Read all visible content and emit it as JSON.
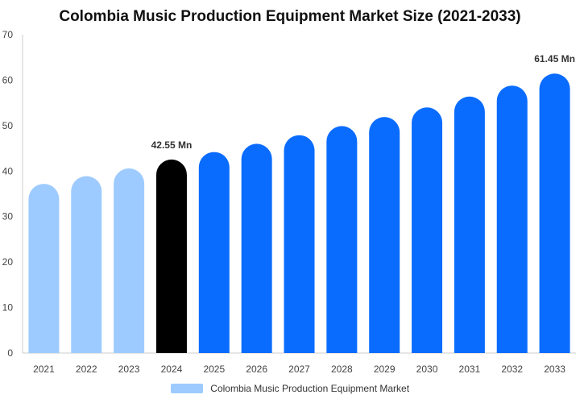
{
  "chart_data": {
    "type": "bar",
    "title": "Colombia Music Production Equipment Market Size (2021-2033)",
    "xlabel": "",
    "ylabel": "",
    "ylim": [
      0,
      70
    ],
    "yticks": [
      0,
      10,
      20,
      30,
      40,
      50,
      60,
      70
    ],
    "categories": [
      "2021",
      "2022",
      "2023",
      "2024",
      "2025",
      "2026",
      "2027",
      "2028",
      "2029",
      "2030",
      "2031",
      "2032",
      "2033"
    ],
    "series": [
      {
        "name": "Colombia Music Production Equipment Market",
        "values": [
          37.2,
          38.9,
          40.6,
          42.55,
          44.2,
          46.0,
          47.9,
          49.9,
          51.9,
          54.0,
          56.4,
          58.8,
          61.45
        ]
      }
    ],
    "bar_colors": [
      "#9ecbff",
      "#9ecbff",
      "#9ecbff",
      "#000000",
      "#0a6cff",
      "#0a6cff",
      "#0a6cff",
      "#0a6cff",
      "#0a6cff",
      "#0a6cff",
      "#0a6cff",
      "#0a6cff",
      "#0a6cff"
    ],
    "legend_color": "#9ecbff",
    "data_labels": [
      {
        "index": 3,
        "text": "42.55 Mn"
      },
      {
        "index": 12,
        "text": "61.45 Mn"
      }
    ],
    "grid": false,
    "legend_position": "bottom"
  }
}
